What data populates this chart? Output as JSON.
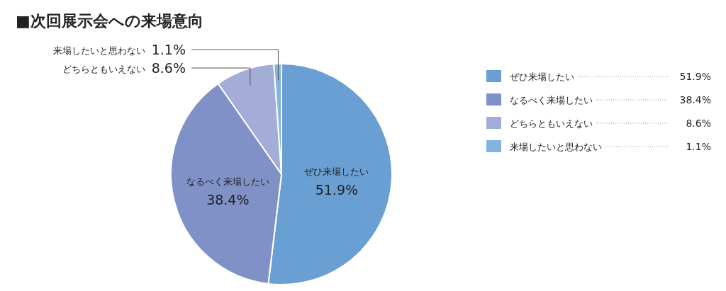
{
  "chart_data": {
    "type": "pie",
    "title": "■次回展示会への来場意向",
    "categories": [
      "ぜひ来場したい",
      "なるべく来場したい",
      "どちらともいえない",
      "来場したいと思わない"
    ],
    "values": [
      51.9,
      38.4,
      8.6,
      1.1
    ],
    "colors": [
      "#6a9fd3",
      "#8091c7",
      "#a4acd8",
      "#82b4e0"
    ],
    "value_labels": [
      "51.9%",
      "38.4%",
      "8.6%",
      "1.1%"
    ],
    "legend": "right"
  }
}
